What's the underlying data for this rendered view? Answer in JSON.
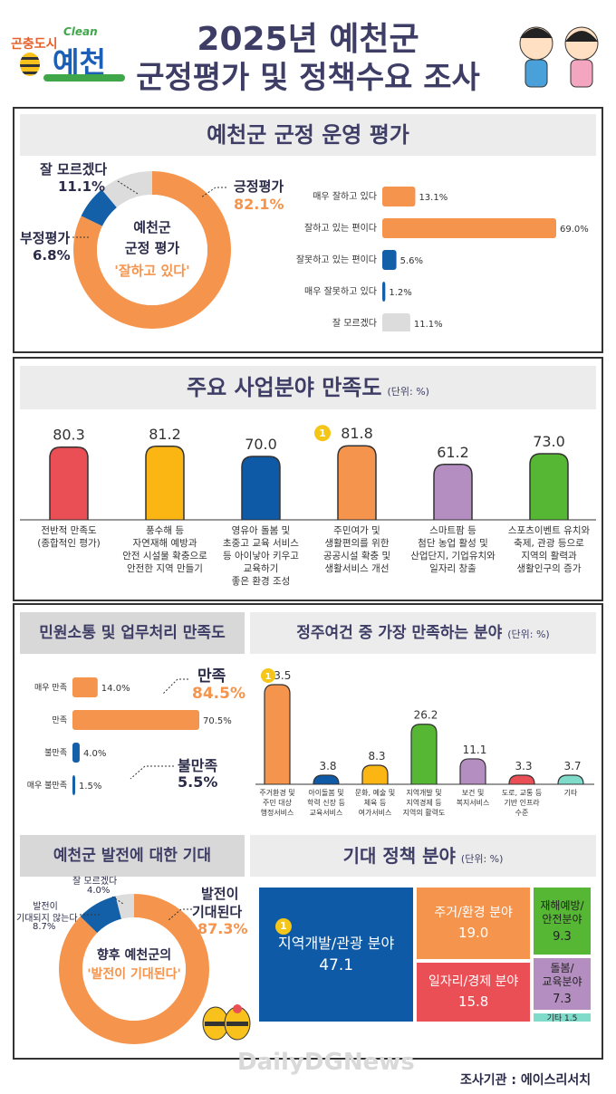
{
  "header": {
    "logo_small": "곤충도시",
    "logo_clean": "Clean",
    "logo_main": "예천",
    "title_line1": "2025년 예천군",
    "title_line2": "군정평가 및 정책수요 조사"
  },
  "colors": {
    "orange": "#f5944c",
    "blue": "#1460a8",
    "gray": "#dcdcdc",
    "red": "#ea4f55",
    "yellow": "#fbb614",
    "navy": "#0e5aa7",
    "purple": "#b48ec0",
    "green": "#55b733",
    "mint": "#7fdccb"
  },
  "eval": {
    "band": "예천군 군정 운영 평가",
    "donut_center": [
      "예천군",
      "군정 평가",
      "'잘하고 있다'"
    ],
    "positive_label": "긍정평가",
    "positive_value": "82.1%",
    "negative_label": "부정평가",
    "negative_value": "6.8%",
    "unknown_label": "잘 모르겠다",
    "unknown_value": "11.1%"
  },
  "satisfaction": {
    "band": "주요 사업분야 만족도",
    "unit": "(단위: %)",
    "captions": [
      [
        "전반적 만족도",
        "(종합적인 평가)"
      ],
      [
        "풍수해 등",
        "자연재해 예방과",
        "안전 시설물 확충으로",
        "안전한 지역 만들기"
      ],
      [
        "영유아 돌봄 및",
        "초중고 교육 서비스",
        "등 아이낳아 키우고",
        "교육하기",
        "좋은 환경 조성"
      ],
      [
        "주민여가 및",
        "생활편의를 위한",
        "공공시설 확충 및",
        "생활서비스 개선"
      ],
      [
        "스마트팜 등",
        "첨단 농업 활성 및",
        "산업단지, 기업유치와",
        "일자리 창출"
      ],
      [
        "스포츠이벤트 유치와",
        "축제, 관광 등으로",
        "지역의 활력과",
        "생활인구의 증가"
      ]
    ],
    "value_labels": [
      "80.3",
      "81.2",
      "70.0",
      "81.8",
      "61.2",
      "73.0"
    ]
  },
  "civil": {
    "band": "민원소통 및 업무처리 만족도",
    "sat_label": "만족",
    "sat_value": "84.5%",
    "unsat_label": "불만족",
    "unsat_value": "5.5%"
  },
  "residence": {
    "band": "정주여건 중 가장 만족하는 분야",
    "unit": "(단위: %)"
  },
  "expect": {
    "band": "예천군 발전에 대한 기대",
    "center_line1": "향후 예천군의",
    "center_line2": "'발전이 기대된다'",
    "pos_label": [
      "발전이",
      "기대된다"
    ],
    "pos_value": "87.3%",
    "neg_label": [
      "발전이",
      "기대되지 않는다"
    ],
    "neg_value": "8.7%",
    "unk_label": "잘 모르겠다",
    "unk_value": "4.0%"
  },
  "policy": {
    "band": "기대 정책 분야",
    "unit": "(단위: %)"
  },
  "footer": {
    "watermark": "DailyDGNews",
    "source": "조사기관 : 에이스리서치"
  },
  "medal": "1",
  "chart_data": [
    {
      "type": "pie",
      "title": "예천군 군정 운영 평가",
      "categories": [
        "긍정평가",
        "부정평가",
        "잘 모르겠다"
      ],
      "values": [
        82.1,
        6.8,
        11.1
      ]
    },
    {
      "type": "bar",
      "orientation": "horizontal",
      "title": "예천군 군정 운영 평가",
      "categories": [
        "매우 잘하고 있다",
        "잘하고 있는 편이다",
        "잘못하고 있는 편이다",
        "매우 잘못하고 있다",
        "잘 모르겠다"
      ],
      "values": [
        13.1,
        69.0,
        5.6,
        1.2,
        11.1
      ],
      "value_labels": [
        "13.1%",
        "69.0%",
        "5.6%",
        "1.2%",
        "11.1%"
      ],
      "colors": [
        "#f5944c",
        "#f5944c",
        "#1460a8",
        "#1460a8",
        "#dcdcdc"
      ],
      "xlim": [
        0,
        69
      ]
    },
    {
      "type": "bar",
      "title": "주요 사업분야 만족도",
      "values": [
        80.3,
        81.2,
        70.0,
        81.8,
        61.2,
        73.0
      ],
      "colors": [
        "#ea4f55",
        "#fbb614",
        "#0e5aa7",
        "#f5944c",
        "#b48ec0",
        "#55b733"
      ],
      "ylim": [
        0,
        100
      ]
    },
    {
      "type": "bar",
      "orientation": "horizontal",
      "title": "민원소통 및 업무처리 만족도",
      "categories": [
        "매우 만족",
        "만족",
        "불만족",
        "매우 불만족"
      ],
      "values": [
        14.0,
        70.5,
        4.0,
        1.5
      ],
      "value_labels": [
        "14.0%",
        "70.5%",
        "4.0%",
        "1.5%"
      ],
      "colors": [
        "#f5944c",
        "#f5944c",
        "#1460a8",
        "#1460a8"
      ],
      "xlim": [
        0,
        70.5
      ]
    },
    {
      "type": "bar",
      "title": "정주여건 중 가장 만족하는 분야",
      "categories": [
        [
          "주거환경 및",
          "주민 대상",
          "행정서비스"
        ],
        [
          "아이돌봄 및",
          "학력 신장 등",
          "교육서비스"
        ],
        [
          "문화, 예술 및",
          "체육 등",
          "여가서비스"
        ],
        [
          "지역개발 및",
          "지역경제 등",
          "지역의 활력도"
        ],
        [
          "보건 및",
          "복지서비스"
        ],
        [
          "도로, 교통 등",
          "기반 인프라",
          "수준"
        ],
        [
          "기타"
        ]
      ],
      "values": [
        43.5,
        3.8,
        8.3,
        26.2,
        11.1,
        3.3,
        3.7
      ],
      "value_labels": [
        "43.5",
        "3.8",
        "8.3",
        "26.2",
        "11.1",
        "3.3",
        "3.7"
      ],
      "colors": [
        "#f5944c",
        "#0e5aa7",
        "#fbb614",
        "#55b733",
        "#b48ec0",
        "#ea4f55",
        "#7fdccb"
      ],
      "ylim": [
        0,
        43.5
      ]
    },
    {
      "type": "pie",
      "title": "예천군 발전에 대한 기대",
      "categories": [
        "발전이 기대된다",
        "발전이 기대되지 않는다",
        "잘 모르겠다"
      ],
      "values": [
        87.3,
        8.7,
        4.0
      ]
    },
    {
      "type": "treemap",
      "title": "기대 정책 분야",
      "categories": [
        "지역개발/관광 분야",
        "주거/환경 분야",
        "일자리/경제 분야",
        "재해예방/안전분야",
        "돌봄/교육분야",
        "기타"
      ],
      "values": [
        47.1,
        19.0,
        15.8,
        9.3,
        7.3,
        1.5
      ],
      "value_labels": [
        "47.1",
        "19.0",
        "15.8",
        "9.3",
        "7.3",
        "1.5"
      ],
      "colors": [
        "#0e5aa7",
        "#f5944c",
        "#ea4f55",
        "#55b733",
        "#b48ec0",
        "#7fdccb"
      ]
    }
  ]
}
